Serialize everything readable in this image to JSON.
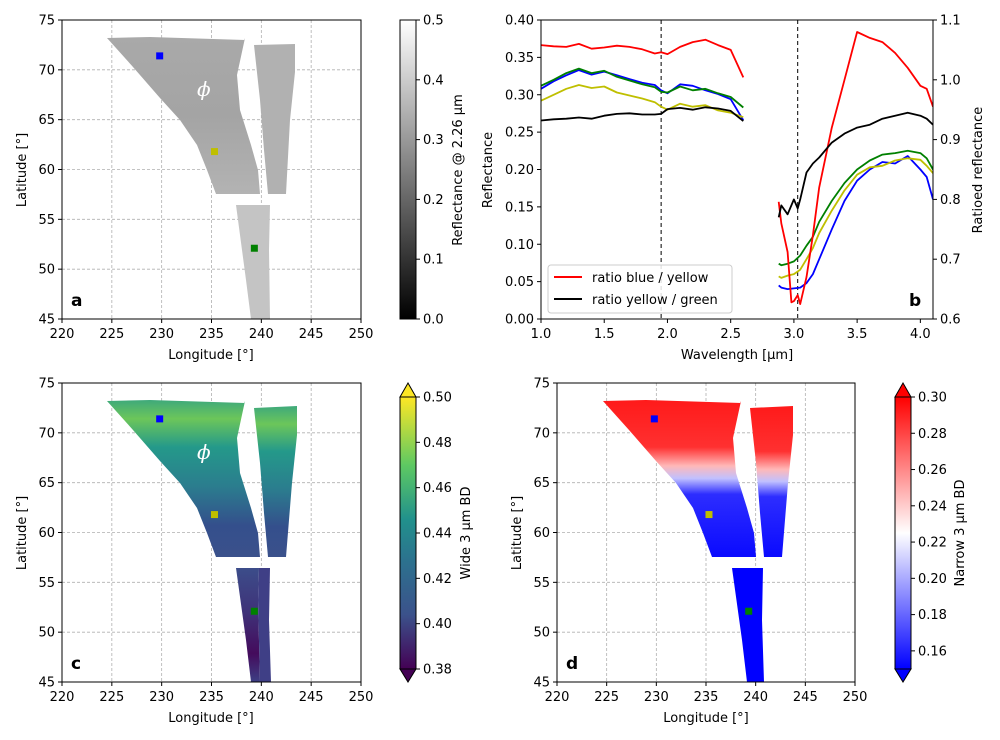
{
  "chart_data": [
    {
      "id": "a",
      "type": "heatmap",
      "panel_letter": "a",
      "xlabel": "Longitude [°]",
      "ylabel": "Latitude [°]",
      "xlim": [
        220,
        250
      ],
      "ylim": [
        45,
        75
      ],
      "xticks": [
        220,
        225,
        230,
        235,
        240,
        245,
        250
      ],
      "yticks": [
        45,
        50,
        55,
        60,
        65,
        70,
        75
      ],
      "grid": true,
      "annotation": "ϕ",
      "colorbar": {
        "label": "Reflectance @ 2.26 µm",
        "range": [
          0.0,
          0.5
        ],
        "ticks": [
          0.0,
          0.1,
          0.2,
          0.3,
          0.4,
          0.5
        ],
        "colormap": "gray"
      },
      "markers": [
        {
          "name": "blue",
          "lon": 229.8,
          "lat": 71.4,
          "color": "#0000ff"
        },
        {
          "name": "yellow",
          "lon": 235.3,
          "lat": 61.8,
          "color": "#bfbf00"
        },
        {
          "name": "green",
          "lon": 239.3,
          "lat": 52.1,
          "color": "#008000"
        }
      ]
    },
    {
      "id": "b",
      "type": "line",
      "panel_letter": "b",
      "xlabel": "Wavelength [µm]",
      "ylabel": "Reflectance",
      "ylabel_right": "Ratioed reflectance",
      "xlim": [
        1.0,
        4.1
      ],
      "ylim": [
        0.0,
        0.4
      ],
      "ylim_right": [
        0.6,
        1.1
      ],
      "xticks": [
        1.0,
        1.5,
        2.0,
        2.5,
        3.0,
        3.5,
        4.0
      ],
      "yticks": [
        0.0,
        0.05,
        0.1,
        0.15,
        0.2,
        0.25,
        0.3,
        0.35,
        0.4
      ],
      "yticks_right": [
        0.6,
        0.7,
        0.8,
        0.9,
        1.0,
        1.1
      ],
      "vlines": [
        1.95,
        3.03
      ],
      "legend": [
        "ratio blue / yellow",
        "ratio yellow / green"
      ],
      "legend_position": "lower-left",
      "series": [
        {
          "name": "blue",
          "color": "#0000ff",
          "axis": "left",
          "segments": [
            {
              "x": [
                1.0,
                1.1,
                1.2,
                1.3,
                1.4,
                1.5,
                1.6,
                1.7,
                1.8,
                1.9,
                1.95,
                2.0,
                2.1,
                2.2,
                2.3,
                2.4,
                2.5,
                2.6
              ],
              "y": [
                0.308,
                0.318,
                0.326,
                0.333,
                0.327,
                0.331,
                0.326,
                0.321,
                0.316,
                0.313,
                0.306,
                0.302,
                0.314,
                0.312,
                0.306,
                0.301,
                0.294,
                0.266
              ]
            },
            {
              "x": [
                2.88,
                2.9,
                2.95,
                3.0,
                3.05,
                3.1,
                3.15,
                3.2,
                3.3,
                3.4,
                3.5,
                3.6,
                3.7,
                3.8,
                3.9,
                4.0,
                4.05,
                4.1
              ],
              "y": [
                0.045,
                0.042,
                0.04,
                0.041,
                0.042,
                0.048,
                0.06,
                0.08,
                0.12,
                0.158,
                0.185,
                0.2,
                0.21,
                0.208,
                0.218,
                0.2,
                0.19,
                0.16
              ]
            }
          ]
        },
        {
          "name": "yellow",
          "color": "#bfbf00",
          "axis": "left",
          "segments": [
            {
              "x": [
                1.0,
                1.1,
                1.2,
                1.3,
                1.4,
                1.5,
                1.6,
                1.7,
                1.8,
                1.9,
                1.95,
                2.0,
                2.1,
                2.2,
                2.3,
                2.4,
                2.5,
                2.6
              ],
              "y": [
                0.292,
                0.3,
                0.308,
                0.313,
                0.309,
                0.311,
                0.303,
                0.299,
                0.295,
                0.29,
                0.284,
                0.28,
                0.288,
                0.284,
                0.286,
                0.279,
                0.276,
                0.27
              ]
            },
            {
              "x": [
                2.88,
                2.9,
                2.95,
                3.0,
                3.05,
                3.1,
                3.15,
                3.2,
                3.3,
                3.4,
                3.5,
                3.6,
                3.7,
                3.8,
                3.9,
                4.0,
                4.05,
                4.1
              ],
              "y": [
                0.057,
                0.055,
                0.058,
                0.06,
                0.066,
                0.08,
                0.095,
                0.115,
                0.145,
                0.172,
                0.193,
                0.203,
                0.205,
                0.212,
                0.215,
                0.213,
                0.205,
                0.195
              ]
            }
          ]
        },
        {
          "name": "green",
          "color": "#008000",
          "axis": "left",
          "segments": [
            {
              "x": [
                1.0,
                1.1,
                1.2,
                1.3,
                1.4,
                1.5,
                1.6,
                1.7,
                1.8,
                1.9,
                1.95,
                2.0,
                2.1,
                2.2,
                2.3,
                2.4,
                2.5,
                2.6
              ],
              "y": [
                0.312,
                0.32,
                0.329,
                0.335,
                0.329,
                0.332,
                0.324,
                0.319,
                0.314,
                0.31,
                0.304,
                0.303,
                0.311,
                0.306,
                0.308,
                0.302,
                0.297,
                0.283
              ]
            },
            {
              "x": [
                2.88,
                2.9,
                2.95,
                3.0,
                3.05,
                3.1,
                3.15,
                3.2,
                3.3,
                3.4,
                3.5,
                3.6,
                3.7,
                3.8,
                3.9,
                4.0,
                4.05,
                4.1
              ],
              "y": [
                0.074,
                0.072,
                0.074,
                0.077,
                0.085,
                0.098,
                0.11,
                0.13,
                0.158,
                0.182,
                0.2,
                0.212,
                0.22,
                0.222,
                0.225,
                0.222,
                0.215,
                0.2
              ]
            }
          ]
        },
        {
          "name": "ratio blue / yellow",
          "color": "#ff0000",
          "axis": "right",
          "segments": [
            {
              "x": [
                1.0,
                1.1,
                1.2,
                1.3,
                1.4,
                1.5,
                1.6,
                1.7,
                1.8,
                1.9,
                1.95,
                2.0,
                2.1,
                2.2,
                2.3,
                2.4,
                2.5,
                2.6
              ],
              "y": [
                1.058,
                1.056,
                1.055,
                1.06,
                1.052,
                1.054,
                1.057,
                1.055,
                1.051,
                1.044,
                1.046,
                1.043,
                1.055,
                1.063,
                1.067,
                1.058,
                1.05,
                1.004
              ]
            },
            {
              "x": [
                2.88,
                2.9,
                2.95,
                2.98,
                3.0,
                3.03,
                3.05,
                3.1,
                3.15,
                3.2,
                3.3,
                3.4,
                3.5,
                3.6,
                3.7,
                3.8,
                3.9,
                4.0,
                4.05,
                4.1
              ],
              "y": [
                0.796,
                0.76,
                0.712,
                0.628,
                0.63,
                0.64,
                0.625,
                0.67,
                0.74,
                0.82,
                0.92,
                1.0,
                1.08,
                1.07,
                1.063,
                1.045,
                1.02,
                0.99,
                0.985,
                0.955
              ]
            }
          ]
        },
        {
          "name": "ratio yellow / green",
          "color": "#000000",
          "axis": "right",
          "segments": [
            {
              "x": [
                1.0,
                1.1,
                1.2,
                1.3,
                1.4,
                1.5,
                1.6,
                1.7,
                1.8,
                1.9,
                1.95,
                2.0,
                2.1,
                2.2,
                2.3,
                2.4,
                2.5,
                2.6
              ],
              "y": [
                0.932,
                0.934,
                0.935,
                0.937,
                0.935,
                0.94,
                0.943,
                0.944,
                0.942,
                0.942,
                0.943,
                0.951,
                0.953,
                0.95,
                0.954,
                0.952,
                0.948,
                0.931
              ]
            },
            {
              "x": [
                2.88,
                2.9,
                2.95,
                3.0,
                3.03,
                3.05,
                3.1,
                3.15,
                3.2,
                3.3,
                3.4,
                3.5,
                3.6,
                3.7,
                3.8,
                3.9,
                4.0,
                4.05,
                4.1
              ],
              "y": [
                0.77,
                0.79,
                0.775,
                0.8,
                0.785,
                0.8,
                0.845,
                0.86,
                0.87,
                0.895,
                0.91,
                0.92,
                0.925,
                0.935,
                0.94,
                0.945,
                0.94,
                0.935,
                0.925
              ]
            }
          ]
        }
      ]
    },
    {
      "id": "c",
      "type": "heatmap",
      "panel_letter": "c",
      "xlabel": "Longitude [°]",
      "ylabel": "Latitude [°]",
      "xlim": [
        220,
        250
      ],
      "ylim": [
        45,
        75
      ],
      "xticks": [
        220,
        225,
        230,
        235,
        240,
        245,
        250
      ],
      "yticks": [
        45,
        50,
        55,
        60,
        65,
        70,
        75
      ],
      "grid": true,
      "annotation": "ϕ",
      "colorbar": {
        "label": "Wide 3 µm BD",
        "range": [
          0.38,
          0.5
        ],
        "ticks": [
          0.38,
          0.4,
          0.42,
          0.44,
          0.46,
          0.48,
          0.5
        ],
        "colormap": "viridis",
        "extend": "both"
      },
      "markers": [
        {
          "name": "blue",
          "lon": 229.8,
          "lat": 71.4,
          "color": "#0000ff"
        },
        {
          "name": "yellow",
          "lon": 235.3,
          "lat": 61.8,
          "color": "#bfbf00"
        },
        {
          "name": "green",
          "lon": 239.3,
          "lat": 52.1,
          "color": "#008000"
        }
      ]
    },
    {
      "id": "d",
      "type": "heatmap",
      "panel_letter": "d",
      "xlabel": "Longitude [°]",
      "ylabel": "Latitude [°]",
      "xlim": [
        220,
        250
      ],
      "ylim": [
        45,
        75
      ],
      "xticks": [
        220,
        225,
        230,
        235,
        240,
        245,
        250
      ],
      "yticks": [
        45,
        50,
        55,
        60,
        65,
        70,
        75
      ],
      "grid": true,
      "colorbar": {
        "label": "Narrow 3 µm BD",
        "range": [
          0.15,
          0.3
        ],
        "ticks": [
          0.16,
          0.18,
          0.2,
          0.22,
          0.24,
          0.26,
          0.28,
          0.3
        ],
        "colormap": "bwr",
        "extend": "both"
      },
      "markers": [
        {
          "name": "blue",
          "lon": 229.8,
          "lat": 71.4,
          "color": "#0000ff"
        },
        {
          "name": "yellow",
          "lon": 235.3,
          "lat": 61.8,
          "color": "#bfbf00"
        },
        {
          "name": "green",
          "lon": 239.3,
          "lat": 52.1,
          "color": "#008000"
        }
      ]
    }
  ]
}
